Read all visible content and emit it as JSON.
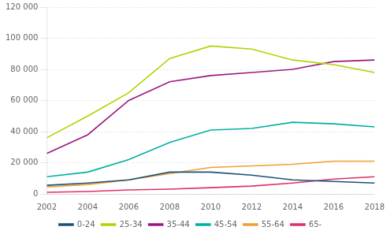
{
  "chart_data": {
    "type": "line",
    "x": [
      2002,
      2004,
      2006,
      2008,
      2010,
      2012,
      2014,
      2016,
      2018
    ],
    "series": [
      {
        "name": "0-24",
        "color": "#1a5276",
        "values": [
          5500,
          7000,
          9000,
          14000,
          14000,
          12000,
          9000,
          8000,
          7000
        ]
      },
      {
        "name": "25-34",
        "color": "#b5d100",
        "values": [
          36000,
          50000,
          65000,
          87000,
          95000,
          93000,
          86000,
          83000,
          78000
        ]
      },
      {
        "name": "35-44",
        "color": "#9b1a7d",
        "values": [
          26000,
          38000,
          60000,
          72000,
          76000,
          78000,
          80000,
          85000,
          86000
        ]
      },
      {
        "name": "45-54",
        "color": "#00b0a0",
        "values": [
          11000,
          14000,
          22000,
          33000,
          41000,
          42000,
          46000,
          45000,
          43000
        ]
      },
      {
        "name": "55-64",
        "color": "#f0a030",
        "values": [
          4500,
          6000,
          9000,
          13000,
          17000,
          18000,
          19000,
          21000,
          21000
        ]
      },
      {
        "name": "65-",
        "color": "#e0306a",
        "values": [
          1000,
          1500,
          2500,
          3000,
          4000,
          5000,
          7000,
          9500,
          11000
        ]
      }
    ],
    "xlim": [
      2002,
      2018
    ],
    "xticks": [
      2002,
      2004,
      2006,
      2008,
      2010,
      2012,
      2014,
      2016,
      2018
    ],
    "ylim": [
      0,
      120000
    ],
    "yticks": [
      0,
      {
        "value": 20000,
        "label": "20 000"
      },
      {
        "value": 40000,
        "label": "40 000"
      },
      {
        "value": 60000,
        "label": "60 000"
      },
      {
        "value": 80000,
        "label": "80 000"
      },
      {
        "value": 100000,
        "label": "100 000"
      },
      {
        "value": 120000,
        "label": "120 000"
      }
    ],
    "grid": true,
    "legend": "bottom"
  }
}
